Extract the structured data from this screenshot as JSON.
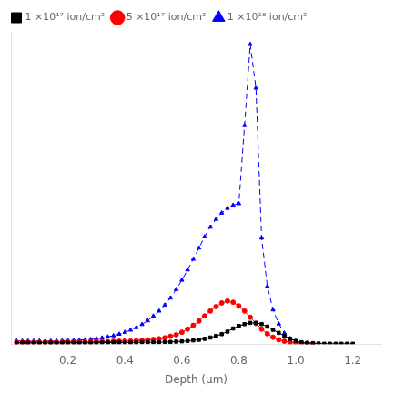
{
  "chart_data": {
    "type": "line",
    "xlabel": "Depth (μm)",
    "xlim": [
      0.0,
      1.3
    ],
    "ylim": [
      0,
      1.0
    ],
    "xticks": [
      0.2,
      0.4,
      0.6,
      0.8,
      {
        "value": 1.0,
        "label": "1.0"
      },
      1.2
    ],
    "tick_labels": "x",
    "grid": false,
    "legend": "upper left",
    "series": [
      {
        "name": "1 ×10¹⁷ ion/cm²",
        "color": "black",
        "marker": "square",
        "line_style": "solid",
        "x": [
          0.02,
          0.04,
          0.06,
          0.08,
          0.1,
          0.12,
          0.14,
          0.16,
          0.18,
          0.2,
          0.22,
          0.24,
          0.26,
          0.28,
          0.3,
          0.32,
          0.34,
          0.36,
          0.38,
          0.4,
          0.42,
          0.44,
          0.46,
          0.48,
          0.5,
          0.52,
          0.54,
          0.56,
          0.58,
          0.6,
          0.62,
          0.64,
          0.66,
          0.68,
          0.7,
          0.72,
          0.74,
          0.76,
          0.78,
          0.8,
          0.82,
          0.84,
          0.86,
          0.88,
          0.9,
          0.92,
          0.94,
          0.96,
          0.98,
          1.0,
          1.02,
          1.04,
          1.06,
          1.08,
          1.1,
          1.12,
          1.14,
          1.16,
          1.18,
          1.2
        ],
        "values": [
          0.004,
          0.004,
          0.004,
          0.004,
          0.004,
          0.004,
          0.004,
          0.004,
          0.004,
          0.004,
          0.004,
          0.004,
          0.004,
          0.004,
          0.004,
          0.005,
          0.005,
          0.005,
          0.005,
          0.005,
          0.005,
          0.005,
          0.006,
          0.006,
          0.006,
          0.006,
          0.007,
          0.007,
          0.008,
          0.009,
          0.01,
          0.012,
          0.014,
          0.017,
          0.021,
          0.026,
          0.032,
          0.04,
          0.05,
          0.058,
          0.064,
          0.068,
          0.068,
          0.064,
          0.056,
          0.046,
          0.036,
          0.026,
          0.017,
          0.01,
          0.006,
          0.004,
          0.003,
          0.002,
          0.001,
          0.001,
          0.001,
          0.001,
          0.001,
          0.001
        ]
      },
      {
        "name": "5 ×10¹⁷ ion/cm²",
        "color": "red",
        "marker": "circle",
        "line_style": "solid",
        "x": [
          0.02,
          0.04,
          0.06,
          0.08,
          0.1,
          0.12,
          0.14,
          0.16,
          0.18,
          0.2,
          0.22,
          0.24,
          0.26,
          0.28,
          0.3,
          0.32,
          0.34,
          0.36,
          0.38,
          0.4,
          0.42,
          0.44,
          0.46,
          0.48,
          0.5,
          0.52,
          0.54,
          0.56,
          0.58,
          0.6,
          0.62,
          0.64,
          0.66,
          0.68,
          0.7,
          0.72,
          0.74,
          0.76,
          0.78,
          0.8,
          0.82,
          0.84,
          0.86,
          0.88,
          0.9,
          0.92,
          0.94,
          0.96,
          0.98,
          1.0,
          1.02,
          1.04,
          1.06
        ],
        "values": [
          0.006,
          0.006,
          0.006,
          0.006,
          0.006,
          0.006,
          0.006,
          0.006,
          0.007,
          0.007,
          0.007,
          0.007,
          0.007,
          0.007,
          0.008,
          0.008,
          0.008,
          0.009,
          0.009,
          0.01,
          0.01,
          0.011,
          0.012,
          0.013,
          0.015,
          0.017,
          0.02,
          0.025,
          0.03,
          0.038,
          0.048,
          0.06,
          0.074,
          0.09,
          0.106,
          0.12,
          0.132,
          0.138,
          0.134,
          0.122,
          0.106,
          0.086,
          0.066,
          0.048,
          0.033,
          0.022,
          0.014,
          0.009,
          0.006,
          0.004,
          0.003,
          0.002,
          0.001
        ]
      },
      {
        "name": "1 ×10¹⁸ ion/cm²",
        "color": "blue",
        "marker": "triangle",
        "line_style": "dashed",
        "x": [
          0.02,
          0.04,
          0.06,
          0.08,
          0.1,
          0.12,
          0.14,
          0.16,
          0.18,
          0.2,
          0.22,
          0.24,
          0.26,
          0.28,
          0.3,
          0.32,
          0.34,
          0.36,
          0.38,
          0.4,
          0.42,
          0.44,
          0.46,
          0.48,
          0.5,
          0.52,
          0.54,
          0.56,
          0.58,
          0.6,
          0.62,
          0.64,
          0.66,
          0.68,
          0.7,
          0.72,
          0.74,
          0.76,
          0.78,
          0.8,
          0.82,
          0.84,
          0.86,
          0.88,
          0.9,
          0.92,
          0.94,
          0.96,
          0.98,
          1.0,
          1.02,
          1.04,
          1.06
        ],
        "values": [
          0.01,
          0.01,
          0.01,
          0.01,
          0.01,
          0.01,
          0.01,
          0.01,
          0.011,
          0.011,
          0.012,
          0.013,
          0.014,
          0.015,
          0.017,
          0.02,
          0.023,
          0.027,
          0.032,
          0.038,
          0.045,
          0.053,
          0.063,
          0.075,
          0.09,
          0.106,
          0.125,
          0.148,
          0.175,
          0.205,
          0.238,
          0.272,
          0.308,
          0.344,
          0.375,
          0.4,
          0.42,
          0.435,
          0.445,
          0.45,
          0.7,
          0.96,
          0.82,
          0.34,
          0.185,
          0.11,
          0.065,
          0.035,
          0.018,
          0.009,
          0.005,
          0.003,
          0.002
        ]
      }
    ]
  }
}
